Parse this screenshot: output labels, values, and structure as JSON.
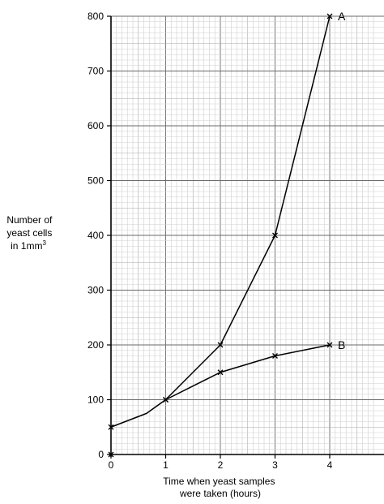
{
  "chart_data": {
    "type": "line",
    "title": "",
    "xlabel_lines": [
      "Time when yeast samples",
      "were taken (hours)"
    ],
    "ylabel_lines": [
      "Number of",
      "yeast cells",
      "in 1mm"
    ],
    "ylabel_superscript": "3",
    "xlim": [
      0,
      4.85
    ],
    "ylim": [
      0,
      800
    ],
    "x_ticks": [
      0,
      1,
      2,
      3,
      4
    ],
    "y_ticks": [
      0,
      100,
      200,
      300,
      400,
      500,
      600,
      700,
      800
    ],
    "x_tick_labels": [
      "0",
      "1",
      "2",
      "3",
      "4"
    ],
    "y_tick_labels": [
      "0",
      "100",
      "200",
      "300",
      "400",
      "500",
      "600",
      "700",
      "800"
    ],
    "grid": true,
    "start_point": {
      "x": 0,
      "y": 0
    },
    "series": [
      {
        "name": "A",
        "x": [
          0,
          0.65,
          1,
          2,
          3,
          4
        ],
        "y": [
          50,
          75,
          100,
          200,
          400,
          800
        ],
        "marked_x": [
          0,
          1,
          2,
          3,
          4
        ]
      },
      {
        "name": "B",
        "x": [
          1,
          2,
          3,
          4
        ],
        "y": [
          100,
          150,
          180,
          200
        ],
        "marked_x": [
          1,
          2,
          3,
          4
        ]
      }
    ]
  }
}
